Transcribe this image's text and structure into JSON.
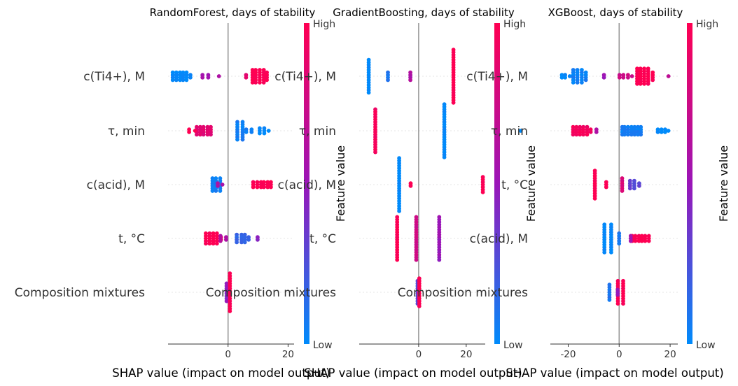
{
  "colors": {
    "low": "#008bfb",
    "mid": "#9a15b8",
    "high": "#ff0052",
    "zero_line": "#999999",
    "grid": "#e6e6e6",
    "axis": "#333333",
    "text": "#333333"
  },
  "colorbar": {
    "high_label": "High",
    "low_label": "Low",
    "title": "Feature value"
  },
  "chart_data": [
    {
      "type": "scatter",
      "subtype": "shap-beeswarm",
      "title": "RandomForest, days of stability",
      "xlabel": "SHAP value (impact on model output)",
      "xlim": [
        -20,
        22
      ],
      "xticks": [
        0,
        20
      ],
      "features": [
        {
          "name": "c(Ti4+), M",
          "groups": [
            {
              "x": -15.5,
              "width": 6,
              "n": 22,
              "level": 0.0
            },
            {
              "x": -7.5,
              "width": 2,
              "n": 4,
              "level": 0.55
            },
            {
              "x": -3,
              "width": 0.6,
              "n": 1,
              "level": 0.6
            },
            {
              "x": 10.5,
              "width": 5,
              "n": 28,
              "level": 1.0
            },
            {
              "x": 6,
              "width": 1,
              "n": 2,
              "level": 0.85
            }
          ]
        },
        {
          "name": "τ, min",
          "groups": [
            {
              "x": -7.5,
              "width": 6,
              "n": 20,
              "level": 0.85
            },
            {
              "x": -12,
              "width": 2,
              "n": 3,
              "level": 1.0
            },
            {
              "x": 4,
              "width": 1.5,
              "n": 16,
              "level": 0.05
            },
            {
              "x": 7,
              "width": 2,
              "n": 4,
              "level": 0.05
            },
            {
              "x": 12,
              "width": 3,
              "n": 7,
              "level": 0.0
            }
          ]
        },
        {
          "name": "c(acid), M",
          "groups": [
            {
              "x": -4,
              "width": 2.5,
              "n": 18,
              "level": 0.05
            },
            {
              "x": -2.5,
              "width": 1.5,
              "n": 3,
              "level": 0.6
            },
            {
              "x": 12,
              "width": 7,
              "n": 18,
              "level": 1.0
            }
          ]
        },
        {
          "name": "t, °C",
          "groups": [
            {
              "x": -5,
              "width": 5,
              "n": 22,
              "level": 1.0
            },
            {
              "x": -1.5,
              "width": 2,
              "n": 5,
              "level": 0.6
            },
            {
              "x": 5,
              "width": 4,
              "n": 14,
              "level": 0.15
            },
            {
              "x": 10,
              "width": 1,
              "n": 2,
              "level": 0.45
            }
          ]
        },
        {
          "name": "Composition mixtures",
          "groups": [
            {
              "x": -0.6,
              "width": 1.2,
              "n": 8,
              "level": 0.45
            },
            {
              "x": 0.5,
              "width": 1,
              "n": 16,
              "level": 1.0
            }
          ]
        }
      ]
    },
    {
      "type": "scatter",
      "subtype": "shap-beeswarm",
      "title": "GradientBoosting, days of stability",
      "xlabel": "SHAP value (impact on model output)",
      "xlim": [
        -25,
        28
      ],
      "xticks": [
        0,
        20
      ],
      "features": [
        {
          "name": "c(Ti4+), M",
          "groups": [
            {
              "x": -21,
              "width": 0.5,
              "n": 14,
              "level": 0.0
            },
            {
              "x": -13,
              "width": 0.5,
              "n": 4,
              "level": 0.1
            },
            {
              "x": -3.5,
              "width": 0.5,
              "n": 4,
              "level": 0.6
            },
            {
              "x": 14.5,
              "width": 0.5,
              "n": 22,
              "level": 1.0
            }
          ]
        },
        {
          "name": "τ, min",
          "groups": [
            {
              "x": -18,
              "width": 0.5,
              "n": 18,
              "level": 0.95
            },
            {
              "x": 11,
              "width": 0.5,
              "n": 22,
              "level": 0.0
            },
            {
              "x": 43,
              "width": 0.5,
              "n": 1,
              "level": 0.0
            }
          ]
        },
        {
          "name": "c(acid), M",
          "groups": [
            {
              "x": -8,
              "width": 0.5,
              "n": 22,
              "level": 0.0
            },
            {
              "x": -3.5,
              "width": 0.5,
              "n": 2,
              "level": 1.0
            },
            {
              "x": 27,
              "width": 0.5,
              "n": 7,
              "level": 1.0
            }
          ]
        },
        {
          "name": "t, °C",
          "groups": [
            {
              "x": -9,
              "width": 0.5,
              "n": 18,
              "level": 1.0
            },
            {
              "x": -1,
              "width": 0.5,
              "n": 18,
              "level": 0.75
            },
            {
              "x": 8.5,
              "width": 0.5,
              "n": 18,
              "level": 0.5
            }
          ]
        },
        {
          "name": "Composition mixtures",
          "groups": [
            {
              "x": -0.3,
              "width": 0.5,
              "n": 10,
              "level": 0.3
            },
            {
              "x": 0.3,
              "width": 0.5,
              "n": 12,
              "level": 1.0
            }
          ]
        }
      ]
    },
    {
      "type": "scatter",
      "subtype": "shap-beeswarm",
      "title": "XGBoost, days of stability",
      "xlabel": "SHAP value (impact on model output)",
      "xlim": [
        -27,
        23
      ],
      "xticks": [
        -20,
        0,
        20
      ],
      "features": [
        {
          "name": "c(Ti4+), M",
          "groups": [
            {
              "x": -21,
              "width": 3,
              "n": 5,
              "level": 0.0
            },
            {
              "x": -15.5,
              "width": 5,
              "n": 22,
              "level": 0.05
            },
            {
              "x": -6,
              "width": 1,
              "n": 2,
              "level": 0.5
            },
            {
              "x": 2.5,
              "width": 5,
              "n": 7,
              "level": 0.75
            },
            {
              "x": 10,
              "width": 6,
              "n": 32,
              "level": 1.0
            },
            {
              "x": 19.5,
              "width": 0.5,
              "n": 1,
              "level": 0.7
            }
          ]
        },
        {
          "name": "τ, min",
          "groups": [
            {
              "x": -14,
              "width": 8,
              "n": 22,
              "level": 0.95
            },
            {
              "x": -9,
              "width": 1,
              "n": 2,
              "level": 0.6
            },
            {
              "x": 6,
              "width": 10,
              "n": 28,
              "level": 0.05
            },
            {
              "x": 18,
              "width": 6,
              "n": 7,
              "level": 0.0
            }
          ]
        },
        {
          "name": "t, °C",
          "groups": [
            {
              "x": -9.5,
              "width": 0.8,
              "n": 12,
              "level": 1.0
            },
            {
              "x": -5,
              "width": 1,
              "n": 3,
              "level": 1.0
            },
            {
              "x": 1.2,
              "width": 1.2,
              "n": 6,
              "level": 0.8
            },
            {
              "x": 6,
              "width": 3.5,
              "n": 10,
              "level": 0.3
            }
          ]
        },
        {
          "name": "c(acid), M",
          "groups": [
            {
              "x": -4.5,
              "width": 2.5,
              "n": 24,
              "level": 0.0
            },
            {
              "x": 0,
              "width": 1.5,
              "n": 5,
              "level": 0.1
            },
            {
              "x": 9,
              "width": 8,
              "n": 18,
              "level": 1.0
            },
            {
              "x": 4.5,
              "width": 1,
              "n": 3,
              "level": 0.55
            }
          ]
        },
        {
          "name": "Composition mixtures",
          "groups": [
            {
              "x": -4,
              "width": 1.5,
              "n": 7,
              "level": 0.1
            },
            {
              "x": 0.5,
              "width": 1.8,
              "n": 20,
              "level": 1.0
            },
            {
              "x": -0.5,
              "width": 0.5,
              "n": 3,
              "level": 0.5
            }
          ]
        }
      ]
    }
  ]
}
